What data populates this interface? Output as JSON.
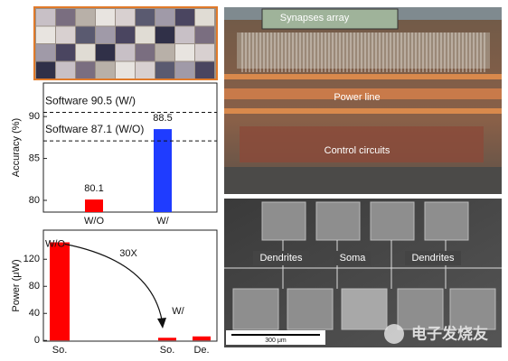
{
  "chart_data": [
    {
      "type": "bar",
      "y_label": "Accuracy (%)",
      "categories": [
        "W/O",
        "W/"
      ],
      "values": [
        80.1,
        88.5
      ],
      "colors": [
        "#ff0000",
        "#1f3cff"
      ],
      "ylim": [
        78.6,
        94
      ],
      "yticks": [
        80,
        85,
        90
      ],
      "reference_lines": [
        {
          "value": 90.5,
          "label": "Software 90.5 (W/)"
        },
        {
          "value": 87.1,
          "label": "Software 87.1 (W/O)"
        }
      ]
    },
    {
      "type": "bar",
      "y_label": "Power (μW)",
      "categories": [
        "So.",
        "So.",
        "De."
      ],
      "values": [
        145,
        4,
        6
      ],
      "colors": [
        "#ff0000",
        "#ff0000",
        "#ff0000"
      ],
      "ylim": [
        -1,
        163
      ],
      "yticks": [
        0,
        40,
        80,
        120
      ],
      "annotations": [
        "W/O",
        "30X",
        "W/"
      ]
    }
  ],
  "photos": {
    "chip_labels": [
      "Synapses array",
      "Power line",
      "Control circuits"
    ],
    "sem_labels": [
      "Dendrites",
      "Soma",
      "Dendrites"
    ],
    "scale_bar": "300 μm",
    "watermark": "电子发烧友"
  }
}
